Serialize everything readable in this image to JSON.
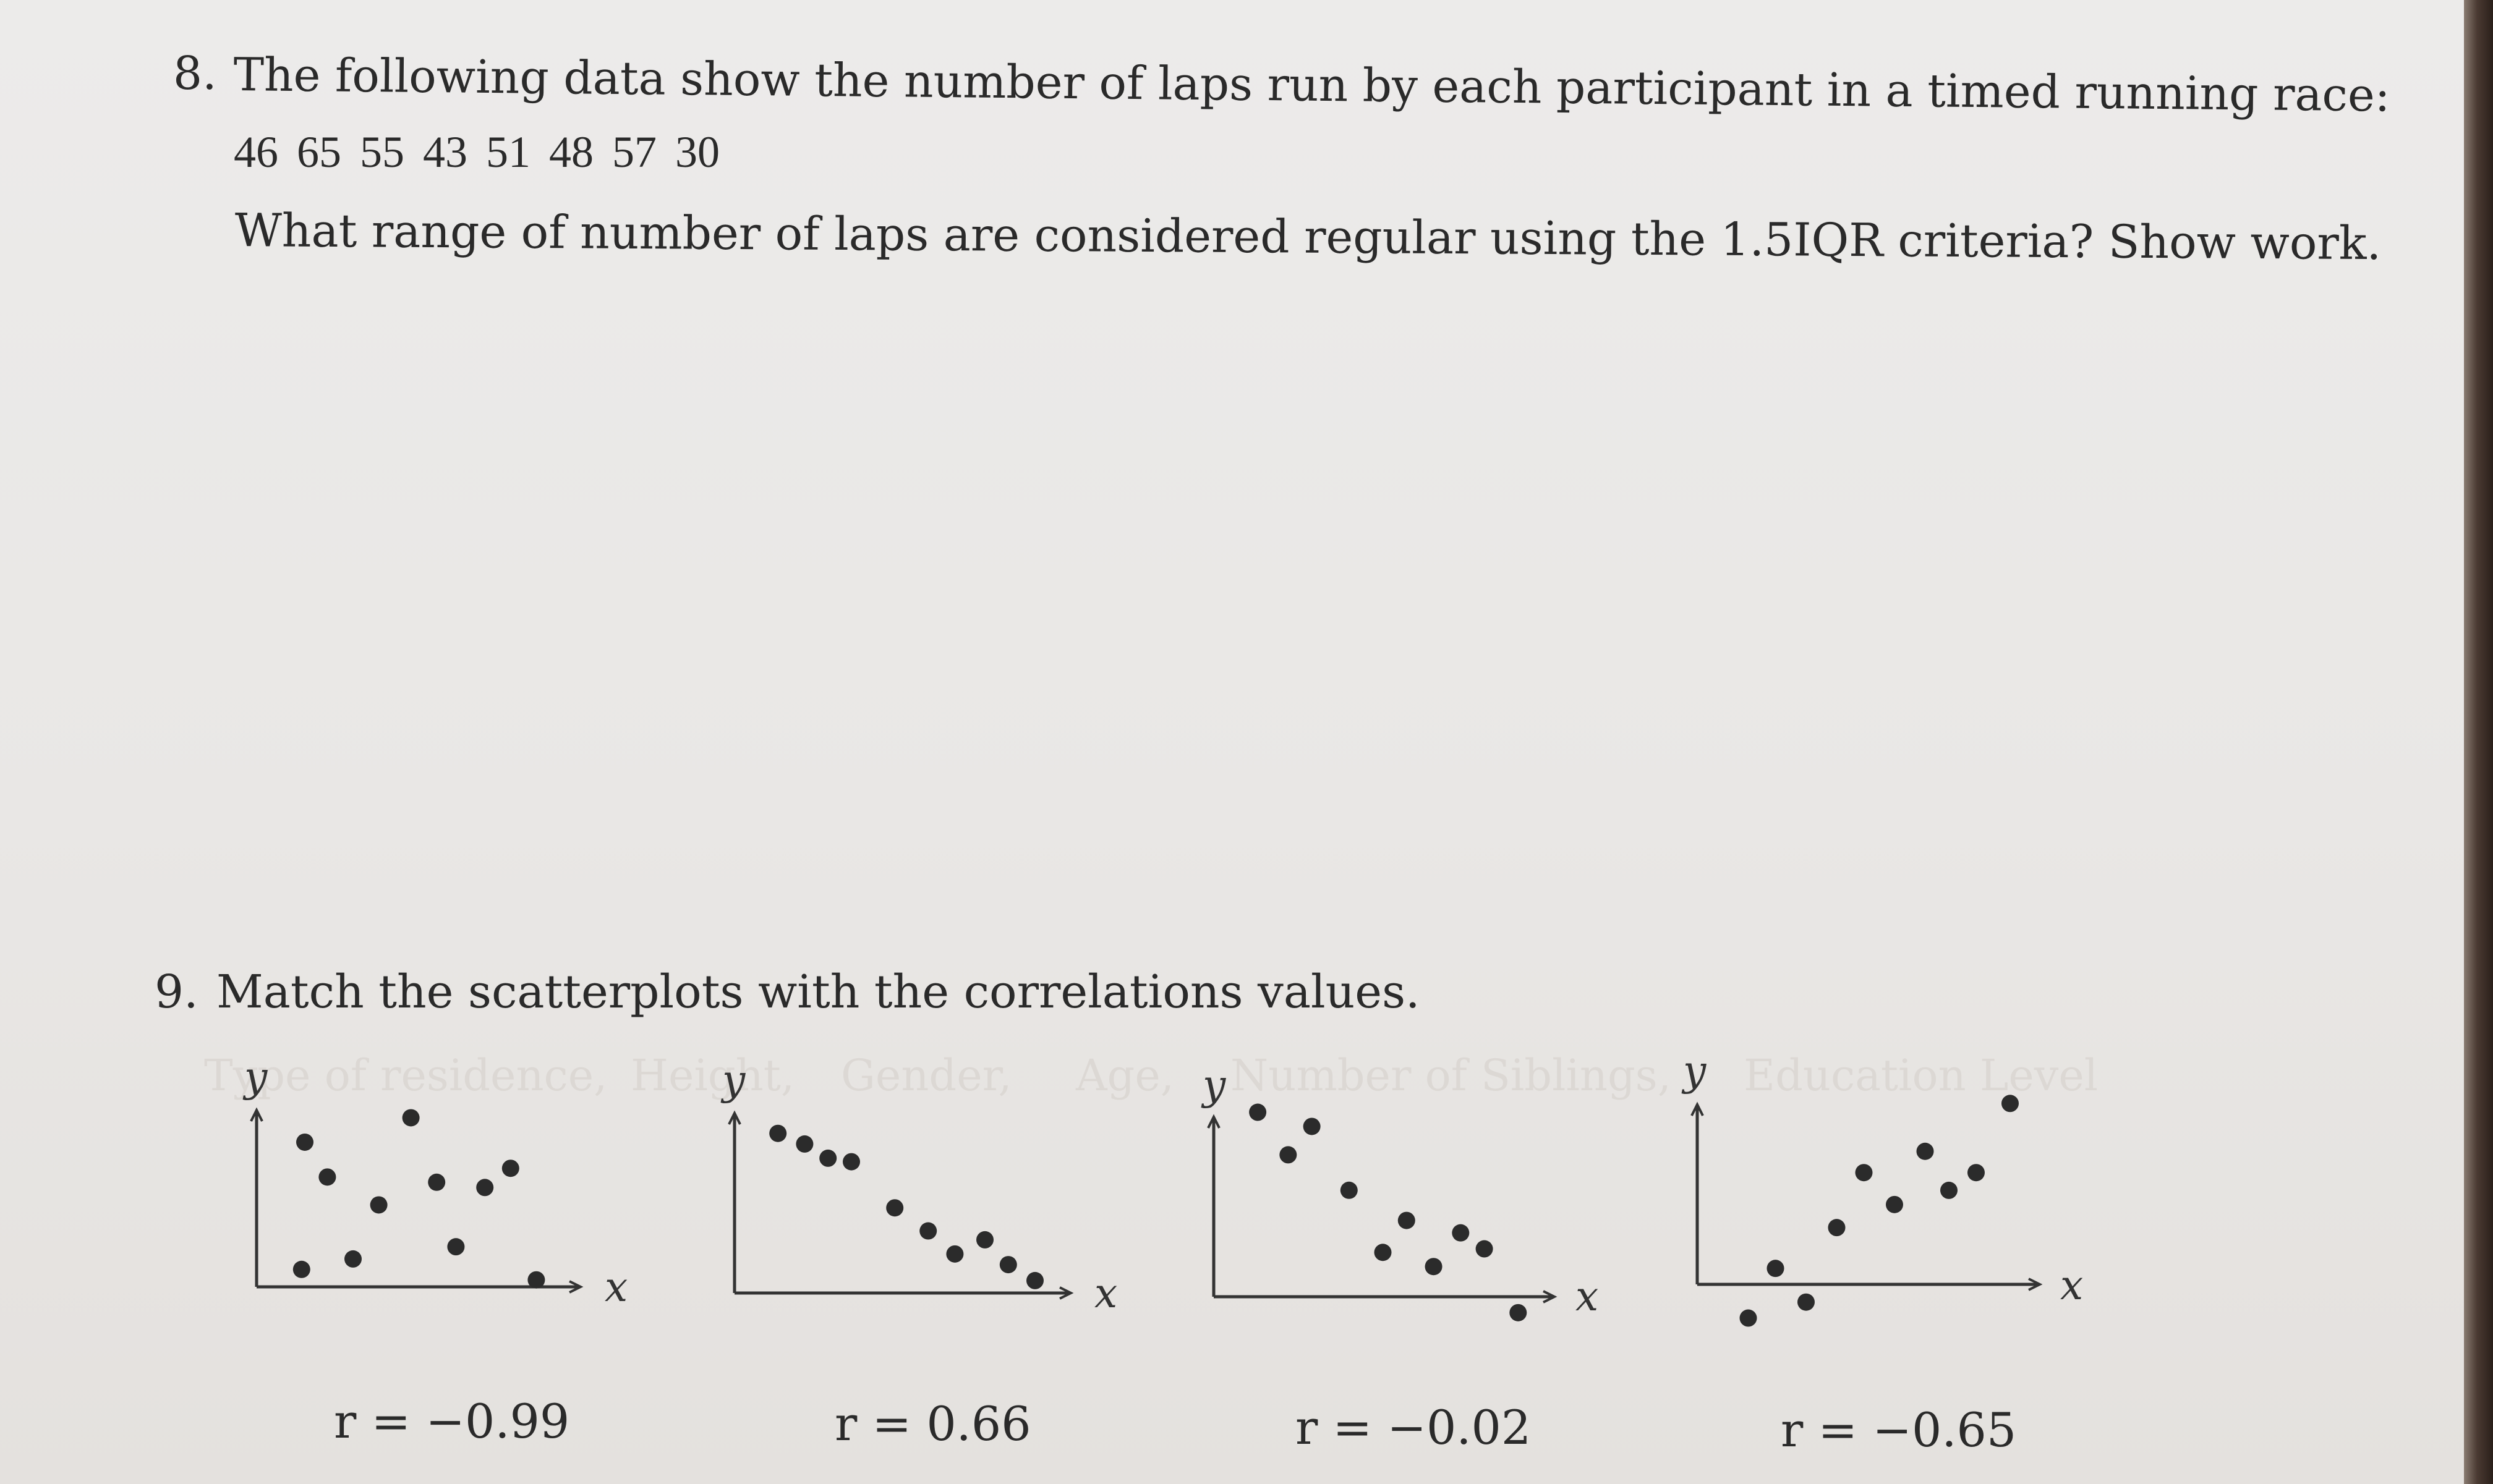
{
  "q8": {
    "number": "8.",
    "prompt": "The following data show the number of laps run by each participant in a timed running race:",
    "data_values": "46 65 55 43 51 48 57 30",
    "question": "What range of number of laps are considered regular using the 1.5IQR criteria? Show work."
  },
  "q9": {
    "number": "9.",
    "prompt": "Match the scatterplots with the correlations values."
  },
  "bleed_through": [
    "Type of residence,",
    "Height,",
    "Gender,",
    "Age,",
    "Number of Siblings,",
    "Education Level"
  ],
  "chart_data": [
    {
      "type": "scatter",
      "xlabel": "x",
      "ylabel": "y",
      "points": [
        [
          0.15,
          0.83
        ],
        [
          0.22,
          0.63
        ],
        [
          0.14,
          0.1
        ],
        [
          0.3,
          0.16
        ],
        [
          0.38,
          0.47
        ],
        [
          0.48,
          0.97
        ],
        [
          0.56,
          0.6
        ],
        [
          0.62,
          0.23
        ],
        [
          0.71,
          0.57
        ],
        [
          0.79,
          0.68
        ],
        [
          0.87,
          0.04
        ]
      ]
    },
    {
      "type": "scatter",
      "xlabel": "x",
      "ylabel": "y",
      "points": [
        [
          0.13,
          0.9
        ],
        [
          0.21,
          0.84
        ],
        [
          0.28,
          0.76
        ],
        [
          0.35,
          0.74
        ],
        [
          0.48,
          0.48
        ],
        [
          0.58,
          0.35
        ],
        [
          0.66,
          0.22
        ],
        [
          0.75,
          0.3
        ],
        [
          0.82,
          0.16
        ],
        [
          0.9,
          0.07
        ]
      ]
    },
    {
      "type": "scatter",
      "xlabel": "x",
      "ylabel": "y",
      "points": [
        [
          0.13,
          1.04
        ],
        [
          0.22,
          0.8
        ],
        [
          0.29,
          0.96
        ],
        [
          0.4,
          0.6
        ],
        [
          0.5,
          0.25
        ],
        [
          0.57,
          0.43
        ],
        [
          0.65,
          0.17
        ],
        [
          0.73,
          0.36
        ],
        [
          0.8,
          0.27
        ],
        [
          0.9,
          -0.09
        ]
      ]
    },
    {
      "type": "scatter",
      "xlabel": "x",
      "ylabel": "y",
      "points": [
        [
          0.15,
          -0.19
        ],
        [
          0.23,
          0.09
        ],
        [
          0.32,
          -0.1
        ],
        [
          0.41,
          0.32
        ],
        [
          0.49,
          0.63
        ],
        [
          0.58,
          0.45
        ],
        [
          0.67,
          0.75
        ],
        [
          0.74,
          0.53
        ],
        [
          0.82,
          0.63
        ],
        [
          0.92,
          1.02
        ]
      ]
    }
  ],
  "correlations": [
    "r = −0.99",
    "r = 0.66",
    "r = −0.02",
    "r = −0.65"
  ]
}
